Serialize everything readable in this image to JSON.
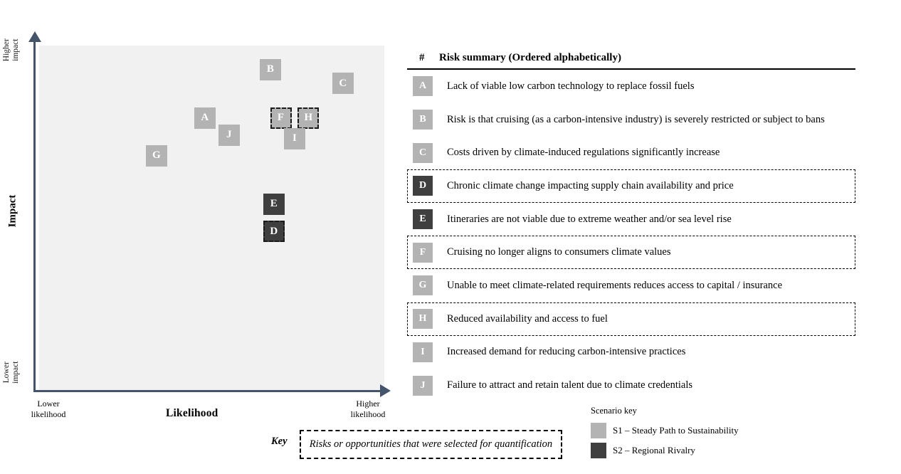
{
  "axes": {
    "y_title": "Impact",
    "y_top_label": "Higher impact",
    "y_bottom_label": "Lower impact",
    "x_title": "Likelihood",
    "x_left_label": "Lower likelihood",
    "x_right_label": "Higher likelihood"
  },
  "table": {
    "col_id": "#",
    "col_summary": "Risk summary (Ordered alphabetically)"
  },
  "key": {
    "label": "Key",
    "note": "Risks or opportunities that were selected for quantification"
  },
  "scenario_key": {
    "title": "Scenario key",
    "items": [
      {
        "scenario": "s1",
        "label": "S1 – Steady Path to Sustainability"
      },
      {
        "scenario": "s2",
        "label": "S2 – Regional Rivalry"
      }
    ]
  },
  "colors": {
    "s1_light_gray": "#b3b3b3",
    "s2_dark_gray": "#3f3f3f",
    "axis": "#44546a",
    "plot_background": "#f1f1f1"
  },
  "chart_data": {
    "type": "scatter",
    "title": "",
    "xlabel": "Likelihood",
    "ylabel": "Impact",
    "x_axis_end_labels": [
      "Lower likelihood",
      "Higher likelihood"
    ],
    "y_axis_end_labels": [
      "Lower impact",
      "Higher impact"
    ],
    "xlim": [
      0,
      100
    ],
    "ylim": [
      0,
      100
    ],
    "grid": false,
    "note": "Axis values estimated 0-100 from marker positions; dashed markers/rows = selected for quantification",
    "points": [
      {
        "id": "A",
        "likelihood": 48,
        "impact": 79,
        "scenario": "S1",
        "selected_for_quantification": false,
        "summary": "Lack of viable low carbon technology to replace fossil fuels"
      },
      {
        "id": "B",
        "likelihood": 67,
        "impact": 93,
        "scenario": "S1",
        "selected_for_quantification": false,
        "summary": "Risk is that cruising (as a carbon-intensive industry) is severely restricted or subject to bans"
      },
      {
        "id": "C",
        "likelihood": 88,
        "impact": 89,
        "scenario": "S1",
        "selected_for_quantification": false,
        "summary": "Costs driven by climate-induced regulations significantly increase"
      },
      {
        "id": "D",
        "likelihood": 68,
        "impact": 46,
        "scenario": "S2",
        "selected_for_quantification": true,
        "summary": "Chronic climate change impacting supply chain availability and price"
      },
      {
        "id": "E",
        "likelihood": 68,
        "impact": 54,
        "scenario": "S2",
        "selected_for_quantification": false,
        "summary": "Itineraries are not viable due to extreme weather and/or sea level rise"
      },
      {
        "id": "F",
        "likelihood": 70,
        "impact": 79,
        "scenario": "S1",
        "selected_for_quantification": true,
        "summary": "Cruising no longer aligns to consumers climate values"
      },
      {
        "id": "G",
        "likelihood": 34,
        "impact": 68,
        "scenario": "S1",
        "selected_for_quantification": false,
        "summary": "Unable to meet climate-related requirements reduces access to capital / insurance"
      },
      {
        "id": "H",
        "likelihood": 78,
        "impact": 79,
        "scenario": "S1",
        "selected_for_quantification": true,
        "summary": "Reduced availability and access to fuel"
      },
      {
        "id": "I",
        "likelihood": 74,
        "impact": 73,
        "scenario": "S1",
        "selected_for_quantification": false,
        "summary": "Increased demand for reducing carbon-intensive practices"
      },
      {
        "id": "J",
        "likelihood": 55,
        "impact": 74,
        "scenario": "S1",
        "selected_for_quantification": false,
        "summary": "Failure to attract and retain talent due to climate credentials"
      }
    ]
  }
}
